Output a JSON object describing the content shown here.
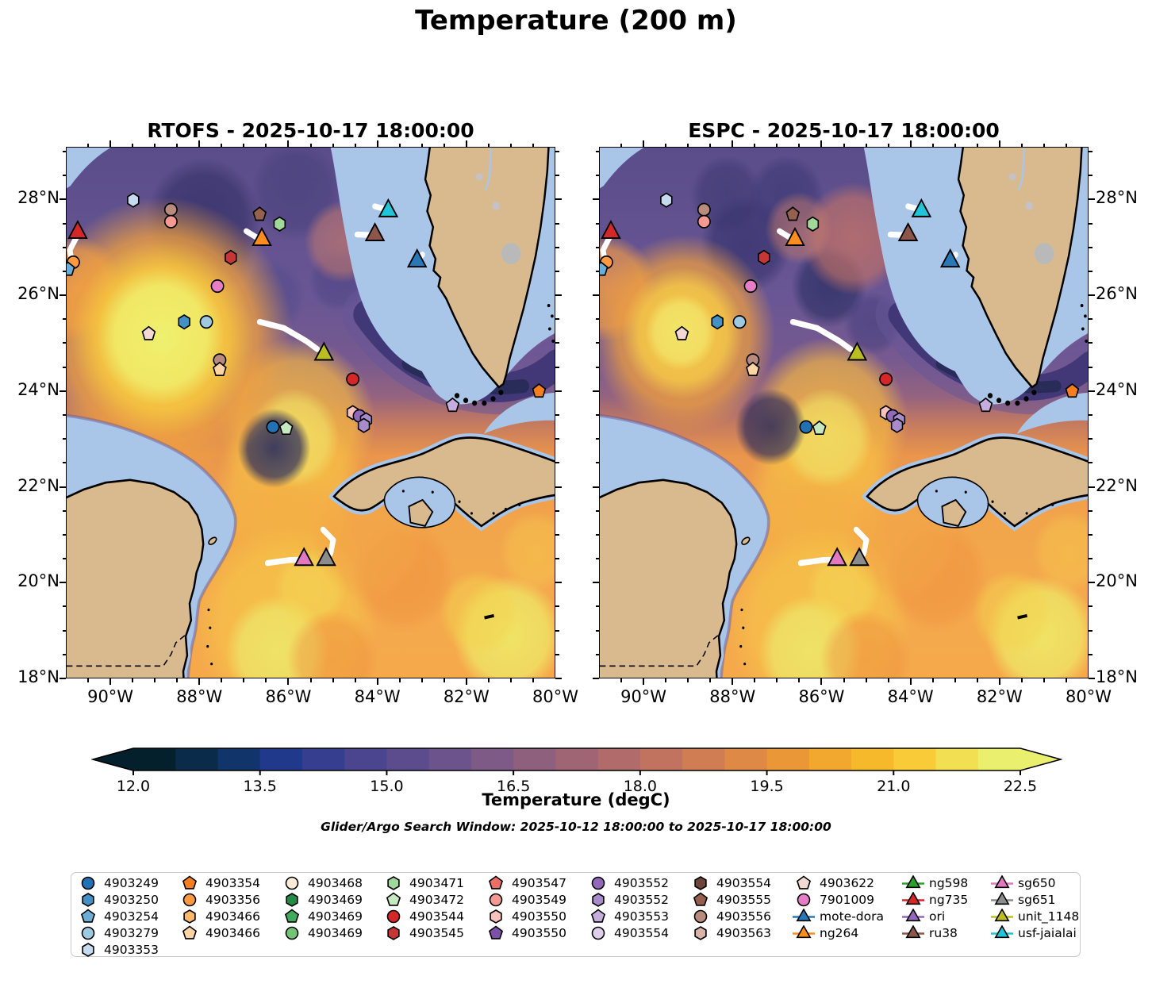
{
  "figure": {
    "title": "Temperature (200 m)",
    "subtitle": "Glider/Argo Search Window: 2025-10-12 18:00:00 to 2025-10-17 18:00:00"
  },
  "panels": [
    {
      "title": "RTOFS - 2025-10-17 18:00:00"
    },
    {
      "title": "ESPC - 2025-10-17 18:00:00"
    }
  ],
  "axes": {
    "x_ticks": [
      {
        "label": "90°W",
        "lon": 90
      },
      {
        "label": "88°W",
        "lon": 88
      },
      {
        "label": "86°W",
        "lon": 86
      },
      {
        "label": "84°W",
        "lon": 84
      },
      {
        "label": "82°W",
        "lon": 82
      },
      {
        "label": "80°W",
        "lon": 80
      }
    ],
    "y_ticks": [
      {
        "label": "28°N",
        "lat": 28
      },
      {
        "label": "26°N",
        "lat": 26
      },
      {
        "label": "24°N",
        "lat": 24
      },
      {
        "label": "22°N",
        "lat": 22
      },
      {
        "label": "20°N",
        "lat": 20
      },
      {
        "label": "18°N",
        "lat": 18
      }
    ]
  },
  "colorbar": {
    "label": "Temperature (degC)",
    "ticks": [
      {
        "label": "12.0",
        "value": 12.0
      },
      {
        "label": "13.5",
        "value": 13.5
      },
      {
        "label": "15.0",
        "value": 15.0
      },
      {
        "label": "16.5",
        "value": 16.5
      },
      {
        "label": "18.0",
        "value": 18.0
      },
      {
        "label": "19.5",
        "value": 19.5
      },
      {
        "label": "21.0",
        "value": 21.0
      },
      {
        "label": "22.5",
        "value": 22.5
      }
    ]
  },
  "legend": {
    "columns": [
      [
        {
          "label": "4903249",
          "shape": "circle",
          "color": "#2171b5"
        },
        {
          "label": "4903250",
          "shape": "hexagon",
          "color": "#4292c6"
        },
        {
          "label": "4903254",
          "shape": "pentagon",
          "color": "#6baed6"
        },
        {
          "label": "4903279",
          "shape": "circle",
          "color": "#9ecae1"
        },
        {
          "label": "4903353",
          "shape": "hexagon",
          "color": "#c6dbef"
        }
      ],
      [
        {
          "label": "4903354",
          "shape": "pentagon",
          "color": "#f57f20"
        },
        {
          "label": "4903356",
          "shape": "circle",
          "color": "#fd9a41"
        },
        {
          "label": "4903466",
          "shape": "hexagon",
          "color": "#fdb96e"
        },
        {
          "label": "4903466",
          "shape": "pentagon",
          "color": "#fdd5a4"
        }
      ],
      [
        {
          "label": "4903468",
          "shape": "circle",
          "color": "#fcebd7"
        },
        {
          "label": "4903469",
          "shape": "hexagon",
          "color": "#238b45"
        },
        {
          "label": "4903469",
          "shape": "pentagon",
          "color": "#41ab5d"
        },
        {
          "label": "4903469",
          "shape": "circle",
          "color": "#74c476"
        }
      ],
      [
        {
          "label": "4903471",
          "shape": "hexagon",
          "color": "#a1d99b"
        },
        {
          "label": "4903472",
          "shape": "pentagon",
          "color": "#c7e9c0"
        },
        {
          "label": "4903544",
          "shape": "circle",
          "color": "#d62728"
        },
        {
          "label": "4903545",
          "shape": "hexagon",
          "color": "#c73634"
        }
      ],
      [
        {
          "label": "4903547",
          "shape": "pentagon",
          "color": "#ec6e66"
        },
        {
          "label": "4903549",
          "shape": "circle",
          "color": "#f59a93"
        },
        {
          "label": "4903550",
          "shape": "hexagon",
          "color": "#f9c2bc"
        },
        {
          "label": "4903550",
          "shape": "pentagon",
          "color": "#7b52a8"
        }
      ],
      [
        {
          "label": "4903552",
          "shape": "circle",
          "color": "#9368bb"
        },
        {
          "label": "4903552",
          "shape": "hexagon",
          "color": "#a98bcc"
        },
        {
          "label": "4903553",
          "shape": "pentagon",
          "color": "#c5aedd"
        },
        {
          "label": "4903554",
          "shape": "circle",
          "color": "#ded0ed"
        }
      ],
      [
        {
          "label": "4903554",
          "shape": "hexagon",
          "color": "#70453a"
        },
        {
          "label": "4903555",
          "shape": "pentagon",
          "color": "#96604f"
        },
        {
          "label": "4903556",
          "shape": "circle",
          "color": "#b98a7e"
        },
        {
          "label": "4903563",
          "shape": "hexagon",
          "color": "#d9b3aa"
        }
      ],
      [
        {
          "label": "4903622",
          "shape": "pentagon",
          "color": "#f3d9d3"
        },
        {
          "label": "7901009",
          "shape": "circle",
          "color": "#e57ec6"
        },
        {
          "label": "mote-dora",
          "shape": "triangle",
          "color": "#2878b8"
        },
        {
          "label": "ng264",
          "shape": "triangle",
          "color": "#fd8d1e"
        }
      ],
      [
        {
          "label": "ng598",
          "shape": "triangle",
          "color": "#2ca02c"
        },
        {
          "label": "ng735",
          "shape": "triangle",
          "color": "#d62728"
        },
        {
          "label": "ori",
          "shape": "triangle",
          "color": "#9467bd"
        },
        {
          "label": "ru38",
          "shape": "triangle",
          "color": "#8c564b"
        }
      ],
      [
        {
          "label": "sg650",
          "shape": "triangle",
          "color": "#e377c2"
        },
        {
          "label": "sg651",
          "shape": "triangle",
          "color": "#8c8c8c"
        },
        {
          "label": "unit_1148",
          "shape": "triangle",
          "color": "#bcbd22"
        },
        {
          "label": "usf-jaialai",
          "shape": "triangle",
          "color": "#22c4d8"
        }
      ]
    ]
  },
  "chart_data": {
    "type": "heatmap",
    "subtype": "ocean model comparison map (filled temperature contours)",
    "variable": "Temperature",
    "depth": "200 m",
    "units": "degC",
    "models": [
      "RTOFS",
      "ESPC"
    ],
    "valid_time": "2025-10-17 18:00:00",
    "search_window": {
      "start": "2025-10-12 18:00:00",
      "end": "2025-10-17 18:00:00"
    },
    "extent": {
      "lon_west_W": 91.0,
      "lon_east_W": 80.0,
      "lat_south_N": 18.0,
      "lat_north_N": 29.1
    },
    "colorbar_ticks": [
      12.0,
      13.5,
      15.0,
      16.5,
      18.0,
      19.5,
      21.0,
      22.5
    ],
    "markers": [
      {
        "shape": "hexagon",
        "color": "#c6dbef",
        "lon": 89.5,
        "lat": 28.0
      },
      {
        "shape": "circle",
        "color": "#b98a7e",
        "lon": 88.65,
        "lat": 27.8
      },
      {
        "shape": "circle",
        "color": "#f59a93",
        "lon": 88.65,
        "lat": 27.55
      },
      {
        "shape": "pentagon",
        "color": "#96604f",
        "lon": 86.65,
        "lat": 27.7
      },
      {
        "shape": "hexagon",
        "color": "#a1d99b",
        "lon": 86.2,
        "lat": 27.5
      },
      {
        "shape": "hexagon",
        "color": "#c73634",
        "lon": 87.3,
        "lat": 26.8
      },
      {
        "shape": "circle",
        "color": "#fd9a41",
        "lon": 90.85,
        "lat": 26.7
      },
      {
        "shape": "pentagon",
        "color": "#6baed6",
        "lon": 90.97,
        "lat": 26.55
      },
      {
        "shape": "circle",
        "color": "#e57ec6",
        "lon": 87.6,
        "lat": 26.2
      },
      {
        "shape": "hexagon",
        "color": "#4292c6",
        "lon": 88.35,
        "lat": 25.45
      },
      {
        "shape": "circle",
        "color": "#9ecae1",
        "lon": 87.85,
        "lat": 25.45
      },
      {
        "shape": "pentagon",
        "color": "#f3d9d3",
        "lon": 89.15,
        "lat": 25.2
      },
      {
        "shape": "circle",
        "color": "#b98a7e",
        "lon": 87.55,
        "lat": 24.65
      },
      {
        "shape": "pentagon",
        "color": "#fdd5a4",
        "lon": 87.55,
        "lat": 24.45
      },
      {
        "shape": "circle",
        "color": "#d62728",
        "lon": 84.55,
        "lat": 24.25
      },
      {
        "shape": "hexagon",
        "color": "#f9c2bc",
        "lon": 84.55,
        "lat": 23.55
      },
      {
        "shape": "circle",
        "color": "#9368bb",
        "lon": 84.4,
        "lat": 23.48
      },
      {
        "shape": "hexagon",
        "color": "#a98bcc",
        "lon": 84.25,
        "lat": 23.4
      },
      {
        "shape": "hexagon",
        "color": "#a98bcc",
        "lon": 84.3,
        "lat": 23.28
      },
      {
        "shape": "circle",
        "color": "#2171b5",
        "lon": 86.35,
        "lat": 23.25
      },
      {
        "shape": "pentagon",
        "color": "#c7e9c0",
        "lon": 86.05,
        "lat": 23.22
      },
      {
        "shape": "pentagon",
        "color": "#c5aedd",
        "lon": 82.3,
        "lat": 23.7
      },
      {
        "shape": "pentagon",
        "color": "#f57f20",
        "lon": 80.35,
        "lat": 24.0
      },
      {
        "shape": "triangle",
        "color": "#d62728",
        "name": "ng735",
        "lon": 90.75,
        "lat": 27.3
      },
      {
        "shape": "triangle",
        "color": "#fd8d1e",
        "name": "ng264",
        "lon": 86.6,
        "lat": 27.15
      },
      {
        "shape": "triangle",
        "color": "#22c4d8",
        "name": "usf-jaialai",
        "lon": 83.75,
        "lat": 27.75
      },
      {
        "shape": "triangle",
        "color": "#8c564b",
        "name": "ru38",
        "lon": 84.05,
        "lat": 27.25
      },
      {
        "shape": "triangle",
        "color": "#2878b8",
        "name": "mote-dora",
        "lon": 83.1,
        "lat": 26.7
      },
      {
        "shape": "triangle",
        "color": "#bcbd22",
        "name": "unit_1148",
        "lon": 85.2,
        "lat": 24.75
      },
      {
        "shape": "triangle",
        "color": "#e377c2",
        "name": "sg650",
        "lon": 85.65,
        "lat": 20.45
      },
      {
        "shape": "triangle",
        "color": "#8c8c8c",
        "name": "sg651",
        "lon": 85.15,
        "lat": 20.45
      }
    ],
    "glider_tracks": [
      {
        "glider": "ng735",
        "points": [
          [
            90.78,
            27.22
          ],
          [
            90.93,
            26.95
          ],
          [
            90.88,
            26.72
          ]
        ]
      },
      {
        "glider": "ng264",
        "points": [
          [
            86.95,
            27.35
          ],
          [
            86.63,
            27.17
          ]
        ]
      },
      {
        "glider": "usf-jaialai",
        "points": [
          [
            84.05,
            27.87
          ],
          [
            83.85,
            27.82
          ]
        ]
      },
      {
        "glider": "ru38",
        "points": [
          [
            84.45,
            27.28
          ],
          [
            84.15,
            27.27
          ]
        ]
      },
      {
        "glider": "mote-dora",
        "points": [
          [
            82.98,
            26.86
          ],
          [
            83.08,
            26.76
          ]
        ]
      },
      {
        "glider": "unit_1148",
        "points": [
          [
            86.65,
            25.45
          ],
          [
            86.1,
            25.32
          ],
          [
            85.6,
            25.05
          ],
          [
            85.35,
            24.88
          ]
        ]
      },
      {
        "glider": "sg650",
        "points": [
          [
            86.47,
            20.4
          ],
          [
            86.0,
            20.46
          ],
          [
            85.8,
            20.47
          ]
        ]
      },
      {
        "glider": "sg651",
        "points": [
          [
            85.22,
            21.1
          ],
          [
            84.99,
            20.88
          ],
          [
            85.05,
            20.6
          ],
          [
            85.15,
            20.47
          ]
        ]
      }
    ]
  }
}
